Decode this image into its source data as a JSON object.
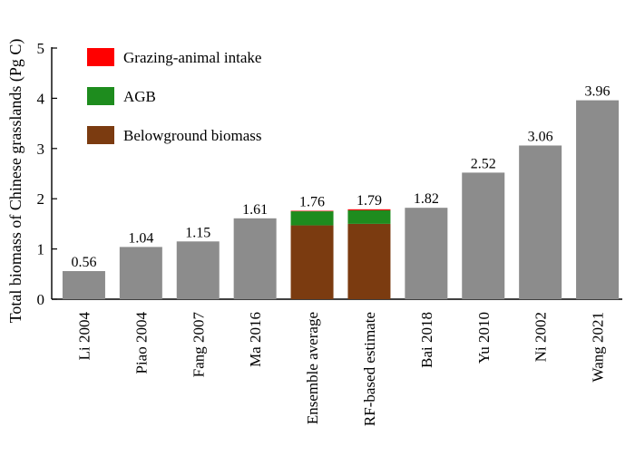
{
  "chart_data": {
    "type": "bar",
    "title": "",
    "xlabel": "",
    "ylabel": "Total biomass of Chinese grasslands (Pg C)",
    "ylim": [
      0,
      5
    ],
    "yticks": [
      0,
      1,
      2,
      3,
      4,
      5
    ],
    "grid": false,
    "legend_position": "top-left",
    "categories": [
      "Li 2004",
      "Piao 2004",
      "Fang 2007",
      "Ma 2016",
      "Ensemble average",
      "RF-based estimate",
      "Bai 2018",
      "Yu 2010",
      "Ni 2002",
      "Wang 2021"
    ],
    "values": [
      0.56,
      1.04,
      1.15,
      1.61,
      1.76,
      1.79,
      1.82,
      2.52,
      3.06,
      3.96
    ],
    "value_labels": [
      "0.56",
      "1.04",
      "1.15",
      "1.61",
      "1.76",
      "1.79",
      "1.82",
      "2.52",
      "3.06",
      "3.96"
    ],
    "bar_color": "#8c8c8c",
    "stacked_components": {
      "Ensemble average": {
        "belowground": 1.47,
        "agb": 0.28,
        "grazing": 0.01
      },
      "RF-based estimate": {
        "belowground": 1.5,
        "agb": 0.27,
        "grazing": 0.02
      }
    },
    "series_colors": {
      "belowground": "#7b3b10",
      "agb": "#1e8c1e",
      "grazing": "#ff0000"
    },
    "legend": [
      {
        "key": "grazing",
        "label": "Grazing-animal intake",
        "color": "#ff0000"
      },
      {
        "key": "agb",
        "label": "AGB",
        "color": "#1e8c1e"
      },
      {
        "key": "belowground",
        "label": "Belowground biomass",
        "color": "#7b3b10"
      }
    ]
  }
}
